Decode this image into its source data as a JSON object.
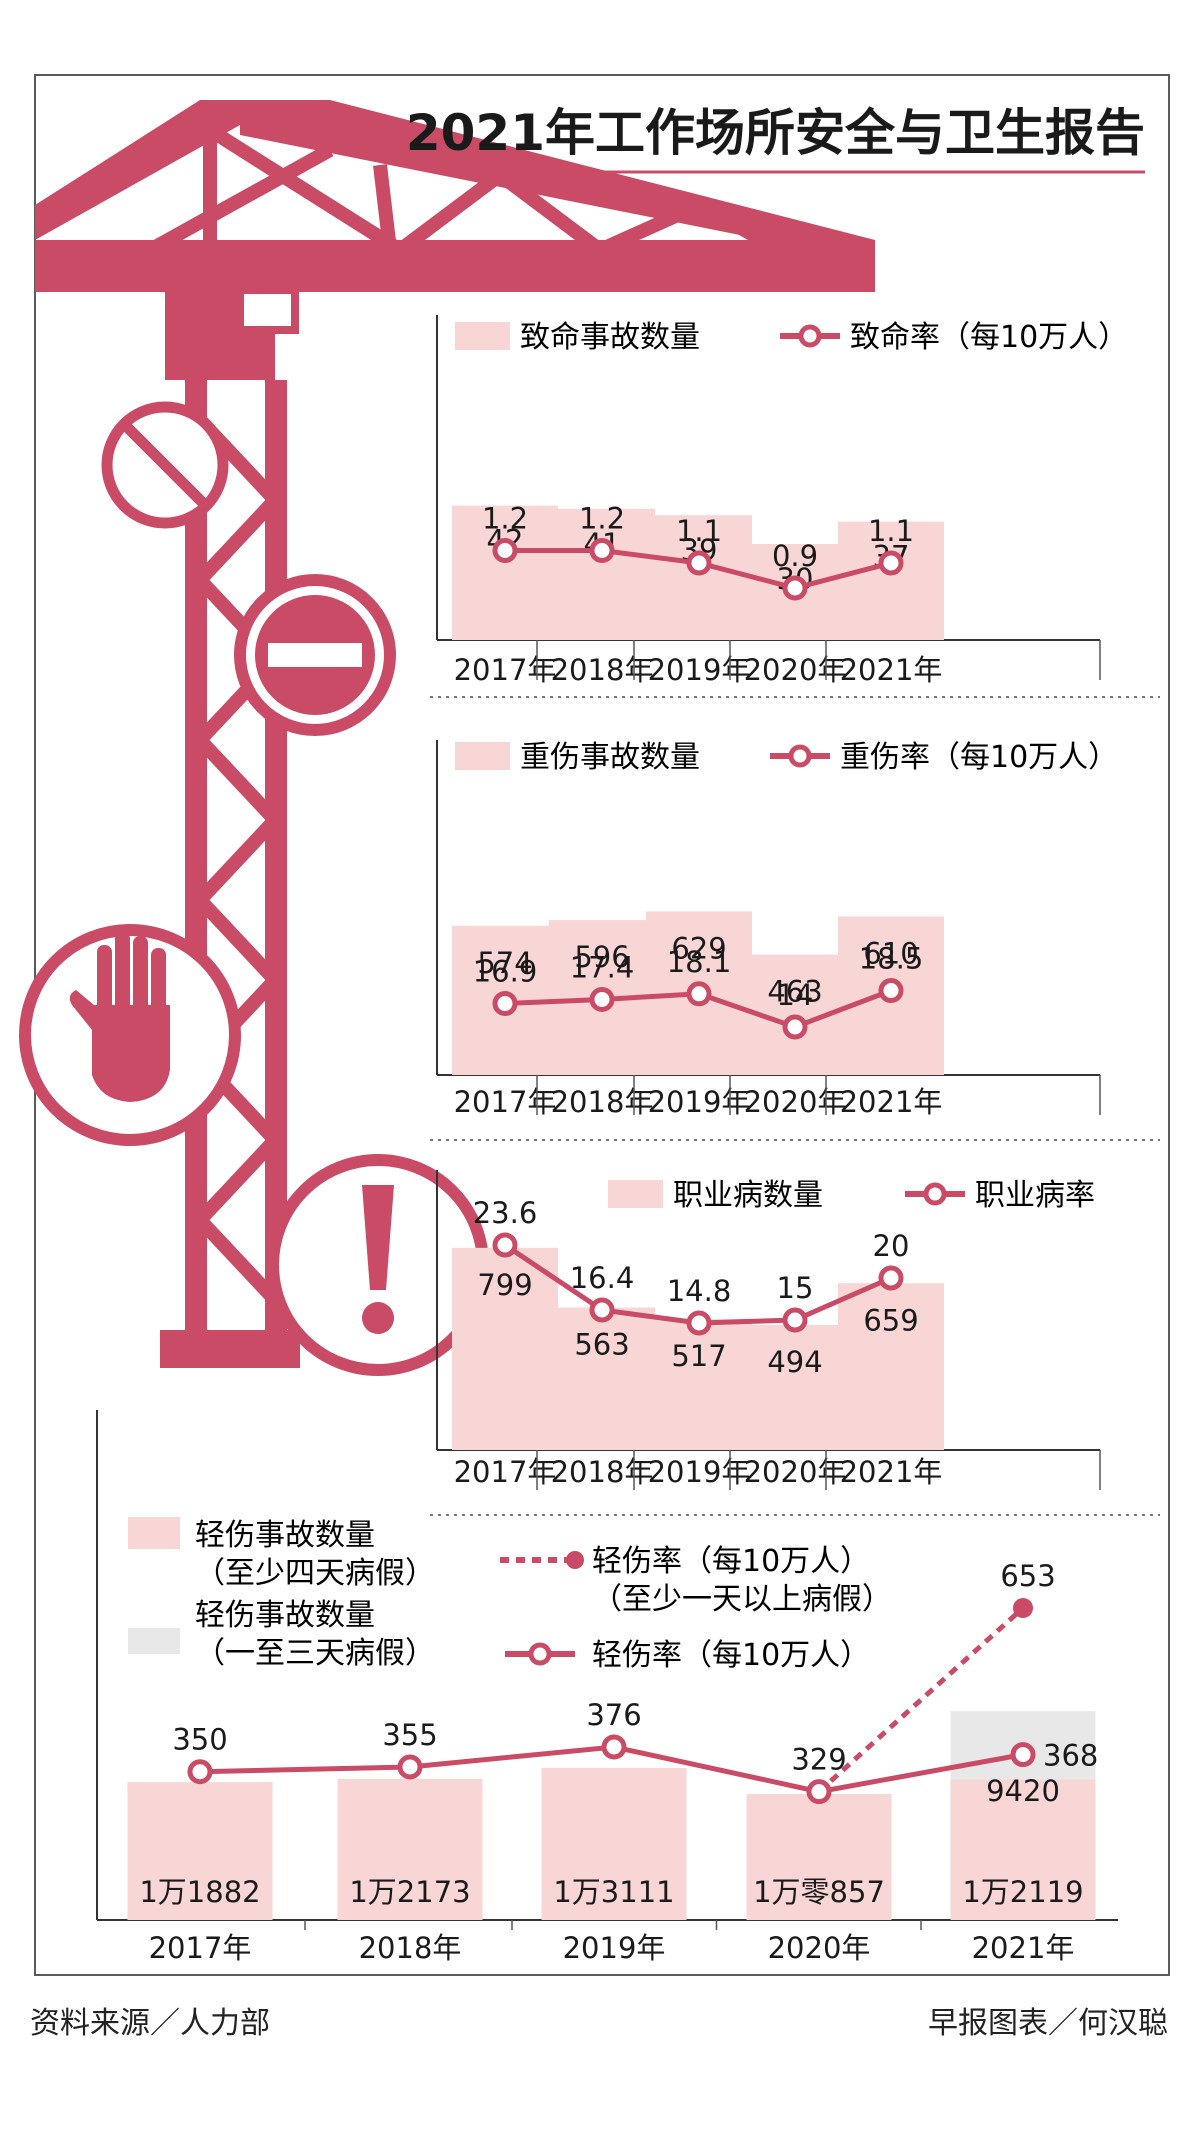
{
  "title": "2021年工作场所安全与卫生报告",
  "colors": {
    "accent": "#c94b66",
    "bar": "#f9d6d6",
    "bar_gray": "#e8e8e8",
    "frame": "#5a5a5a",
    "text": "#1a1a1a"
  },
  "illustration": {
    "crane_icon": "crane-icon",
    "icons": [
      "no-entry-circle-icon",
      "stop-sign-icon",
      "hand-stop-icon",
      "exclamation-icon"
    ]
  },
  "chart_data": [
    {
      "type": "bar+line",
      "title": "fatal",
      "categories": [
        "2017年",
        "2018年",
        "2019年",
        "2020年",
        "2021年"
      ],
      "series": [
        {
          "name": "致命事故数量",
          "kind": "bar",
          "values": [
            42,
            41,
            39,
            30,
            37
          ],
          "labels": [
            "42",
            "41",
            "39",
            "30",
            "37"
          ]
        },
        {
          "name": "致命率（每10万人）",
          "kind": "line",
          "values": [
            1.2,
            1.2,
            1.1,
            0.9,
            1.1
          ],
          "labels": [
            "1.2",
            "1.2",
            "1.1",
            "0.9",
            "1.1"
          ]
        }
      ],
      "legend": {
        "bar": "致命事故数量",
        "line": "致命率（每10万人）"
      }
    },
    {
      "type": "bar+line",
      "title": "major-injury",
      "categories": [
        "2017年",
        "2018年",
        "2019年",
        "2020年",
        "2021年"
      ],
      "series": [
        {
          "name": "重伤事故数量",
          "kind": "bar",
          "values": [
            574,
            596,
            629,
            463,
            610
          ],
          "labels": [
            "574",
            "596",
            "629",
            "463",
            "610"
          ]
        },
        {
          "name": "重伤率（每10万人）",
          "kind": "line",
          "values": [
            16.9,
            17.4,
            18.1,
            14,
            18.5
          ],
          "labels": [
            "16.9",
            "17.4",
            "18.1",
            "14",
            "18.5"
          ]
        }
      ],
      "legend": {
        "bar": "重伤事故数量",
        "line": "重伤率（每10万人）"
      }
    },
    {
      "type": "bar+line",
      "title": "occupational-disease",
      "categories": [
        "2017年",
        "2018年",
        "2019年",
        "2020年",
        "2021年"
      ],
      "series": [
        {
          "name": "职业病数量",
          "kind": "bar",
          "values": [
            799,
            563,
            517,
            494,
            659
          ],
          "labels": [
            "799",
            "563",
            "517",
            "494",
            "659"
          ]
        },
        {
          "name": "职业病率",
          "kind": "line",
          "values": [
            23.6,
            16.4,
            14.8,
            15,
            20
          ],
          "labels": [
            "23.6",
            "16.4",
            "14.8",
            "15",
            "20"
          ]
        }
      ],
      "legend": {
        "bar": "职业病数量",
        "line": "职业病率"
      }
    },
    {
      "type": "bar+line",
      "title": "minor-injury",
      "categories": [
        "2017年",
        "2018年",
        "2019年",
        "2020年",
        "2021年"
      ],
      "series": [
        {
          "name": "轻伤事故数量（至少四天病假）",
          "kind": "bar",
          "values": [
            11882,
            12173,
            13111,
            10857,
            12119
          ],
          "labels": [
            "1万1882",
            "1万2173",
            "1万3111",
            "1万零857",
            "1万2119"
          ]
        },
        {
          "name": "轻伤事故数量（一至三天病假）",
          "kind": "bar-stacked",
          "values": [
            null,
            null,
            null,
            null,
            9420
          ],
          "labels": [
            "",
            "",
            "",
            "",
            "9420"
          ]
        },
        {
          "name": "轻伤率（每10万人）",
          "kind": "line",
          "values": [
            350,
            355,
            376,
            329,
            368
          ],
          "labels": [
            "350",
            "355",
            "376",
            "329",
            "368"
          ]
        },
        {
          "name": "轻伤率（每10万人）（至少一天以上病假）",
          "kind": "line-dashed",
          "values": [
            null,
            null,
            null,
            329,
            653
          ],
          "labels": [
            "",
            "",
            "",
            "",
            "653"
          ]
        }
      ],
      "legend": {
        "bar_main_1": "轻伤事故数量",
        "bar_main_2": "（至少四天病假）",
        "bar_gray_1": "轻伤事故数量",
        "bar_gray_2": "（一至三天病假）",
        "dashed_1": "轻伤率（每10万人）",
        "dashed_2": "（至少一天以上病假）",
        "solid": "轻伤率（每10万人）"
      }
    }
  ],
  "footer": {
    "source": "资料来源／人力部",
    "credit": "早报图表／何汉聪"
  }
}
